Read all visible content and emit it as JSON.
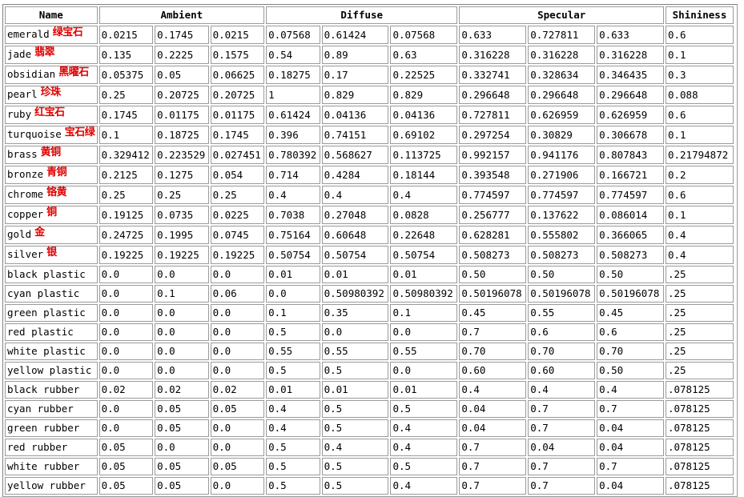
{
  "headers": {
    "name": "Name",
    "ambient": "Ambient",
    "diffuse": "Diffuse",
    "specular": "Specular",
    "shininess": "Shininess"
  },
  "colors": {
    "annotation": "#e00000",
    "border": "#9a9a9a"
  },
  "rows": [
    {
      "name": "emerald",
      "cn": "绿宝石",
      "ambient": [
        "0.0215",
        "0.1745",
        "0.0215"
      ],
      "diffuse": [
        "0.07568",
        "0.61424",
        "0.07568"
      ],
      "specular": [
        "0.633",
        "0.727811",
        "0.633"
      ],
      "shininess": "0.6"
    },
    {
      "name": "jade",
      "cn": "翡翠",
      "ambient": [
        "0.135",
        "0.2225",
        "0.1575"
      ],
      "diffuse": [
        "0.54",
        "0.89",
        "0.63"
      ],
      "specular": [
        "0.316228",
        "0.316228",
        "0.316228"
      ],
      "shininess": "0.1"
    },
    {
      "name": "obsidian",
      "cn": "黑曜石",
      "ambient": [
        "0.05375",
        "0.05",
        "0.06625"
      ],
      "diffuse": [
        "0.18275",
        "0.17",
        "0.22525"
      ],
      "specular": [
        "0.332741",
        "0.328634",
        "0.346435"
      ],
      "shininess": "0.3"
    },
    {
      "name": "pearl",
      "cn": "珍珠",
      "ambient": [
        "0.25",
        "0.20725",
        "0.20725"
      ],
      "diffuse": [
        "1",
        "0.829",
        "0.829"
      ],
      "specular": [
        "0.296648",
        "0.296648",
        "0.296648"
      ],
      "shininess": "0.088"
    },
    {
      "name": "ruby",
      "cn": "红宝石",
      "ambient": [
        "0.1745",
        "0.01175",
        "0.01175"
      ],
      "diffuse": [
        "0.61424",
        "0.04136",
        "0.04136"
      ],
      "specular": [
        "0.727811",
        "0.626959",
        "0.626959"
      ],
      "shininess": "0.6"
    },
    {
      "name": "turquoise",
      "cn": "宝石绿",
      "ambient": [
        "0.1",
        "0.18725",
        "0.1745"
      ],
      "diffuse": [
        "0.396",
        "0.74151",
        "0.69102"
      ],
      "specular": [
        "0.297254",
        "0.30829",
        "0.306678"
      ],
      "shininess": "0.1"
    },
    {
      "name": "brass",
      "cn": "黄铜",
      "ambient": [
        "0.329412",
        "0.223529",
        "0.027451"
      ],
      "diffuse": [
        "0.780392",
        "0.568627",
        "0.113725"
      ],
      "specular": [
        "0.992157",
        "0.941176",
        "0.807843"
      ],
      "shininess": "0.21794872"
    },
    {
      "name": "bronze",
      "cn": "青铜",
      "ambient": [
        "0.2125",
        "0.1275",
        "0.054"
      ],
      "diffuse": [
        "0.714",
        "0.4284",
        "0.18144"
      ],
      "specular": [
        "0.393548",
        "0.271906",
        "0.166721"
      ],
      "shininess": "0.2"
    },
    {
      "name": "chrome",
      "cn": "铬黄",
      "ambient": [
        "0.25",
        "0.25",
        "0.25"
      ],
      "diffuse": [
        "0.4",
        "0.4",
        "0.4"
      ],
      "specular": [
        "0.774597",
        "0.774597",
        "0.774597"
      ],
      "shininess": "0.6"
    },
    {
      "name": "copper",
      "cn": "铜",
      "ambient": [
        "0.19125",
        "0.0735",
        "0.0225"
      ],
      "diffuse": [
        "0.7038",
        "0.27048",
        "0.0828"
      ],
      "specular": [
        "0.256777",
        "0.137622",
        "0.086014"
      ],
      "shininess": "0.1"
    },
    {
      "name": "gold",
      "cn": "金",
      "ambient": [
        "0.24725",
        "0.1995",
        "0.0745"
      ],
      "diffuse": [
        "0.75164",
        "0.60648",
        "0.22648"
      ],
      "specular": [
        "0.628281",
        "0.555802",
        "0.366065"
      ],
      "shininess": "0.4"
    },
    {
      "name": "silver",
      "cn": "银",
      "ambient": [
        "0.19225",
        "0.19225",
        "0.19225"
      ],
      "diffuse": [
        "0.50754",
        "0.50754",
        "0.50754"
      ],
      "specular": [
        "0.508273",
        "0.508273",
        "0.508273"
      ],
      "shininess": "0.4"
    },
    {
      "name": "black plastic",
      "cn": "",
      "ambient": [
        "0.0",
        "0.0",
        "0.0"
      ],
      "diffuse": [
        "0.01",
        "0.01",
        "0.01"
      ],
      "specular": [
        "0.50",
        "0.50",
        "0.50"
      ],
      "shininess": ".25"
    },
    {
      "name": "cyan plastic",
      "cn": "",
      "ambient": [
        "0.0",
        "0.1",
        "0.06"
      ],
      "diffuse": [
        "0.0",
        "0.50980392",
        "0.50980392"
      ],
      "specular": [
        "0.50196078",
        "0.50196078",
        "0.50196078"
      ],
      "shininess": ".25"
    },
    {
      "name": "green plastic",
      "cn": "",
      "ambient": [
        "0.0",
        "0.0",
        "0.0"
      ],
      "diffuse": [
        "0.1",
        "0.35",
        "0.1"
      ],
      "specular": [
        "0.45",
        "0.55",
        "0.45"
      ],
      "shininess": ".25"
    },
    {
      "name": "red plastic",
      "cn": "",
      "ambient": [
        "0.0",
        "0.0",
        "0.0"
      ],
      "diffuse": [
        "0.5",
        "0.0",
        "0.0"
      ],
      "specular": [
        "0.7",
        "0.6",
        "0.6"
      ],
      "shininess": ".25"
    },
    {
      "name": "white plastic",
      "cn": "",
      "ambient": [
        "0.0",
        "0.0",
        "0.0"
      ],
      "diffuse": [
        "0.55",
        "0.55",
        "0.55"
      ],
      "specular": [
        "0.70",
        "0.70",
        "0.70"
      ],
      "shininess": ".25"
    },
    {
      "name": "yellow plastic",
      "cn": "",
      "ambient": [
        "0.0",
        "0.0",
        "0.0"
      ],
      "diffuse": [
        "0.5",
        "0.5",
        "0.0"
      ],
      "specular": [
        "0.60",
        "0.60",
        "0.50"
      ],
      "shininess": ".25"
    },
    {
      "name": "black rubber",
      "cn": "",
      "ambient": [
        "0.02",
        "0.02",
        "0.02"
      ],
      "diffuse": [
        "0.01",
        "0.01",
        "0.01"
      ],
      "specular": [
        "0.4",
        "0.4",
        "0.4"
      ],
      "shininess": ".078125"
    },
    {
      "name": "cyan rubber",
      "cn": "",
      "ambient": [
        "0.0",
        "0.05",
        "0.05"
      ],
      "diffuse": [
        "0.4",
        "0.5",
        "0.5"
      ],
      "specular": [
        "0.04",
        "0.7",
        "0.7"
      ],
      "shininess": ".078125"
    },
    {
      "name": "green rubber",
      "cn": "",
      "ambient": [
        "0.0",
        "0.05",
        "0.0"
      ],
      "diffuse": [
        "0.4",
        "0.5",
        "0.4"
      ],
      "specular": [
        "0.04",
        "0.7",
        "0.04"
      ],
      "shininess": ".078125"
    },
    {
      "name": "red rubber",
      "cn": "",
      "ambient": [
        "0.05",
        "0.0",
        "0.0"
      ],
      "diffuse": [
        "0.5",
        "0.4",
        "0.4"
      ],
      "specular": [
        "0.7",
        "0.04",
        "0.04"
      ],
      "shininess": ".078125"
    },
    {
      "name": "white rubber",
      "cn": "",
      "ambient": [
        "0.05",
        "0.05",
        "0.05"
      ],
      "diffuse": [
        "0.5",
        "0.5",
        "0.5"
      ],
      "specular": [
        "0.7",
        "0.7",
        "0.7"
      ],
      "shininess": ".078125"
    },
    {
      "name": "yellow rubber",
      "cn": "",
      "ambient": [
        "0.05",
        "0.05",
        "0.0"
      ],
      "diffuse": [
        "0.5",
        "0.5",
        "0.4"
      ],
      "specular": [
        "0.7",
        "0.7",
        "0.04"
      ],
      "shininess": ".078125"
    }
  ]
}
